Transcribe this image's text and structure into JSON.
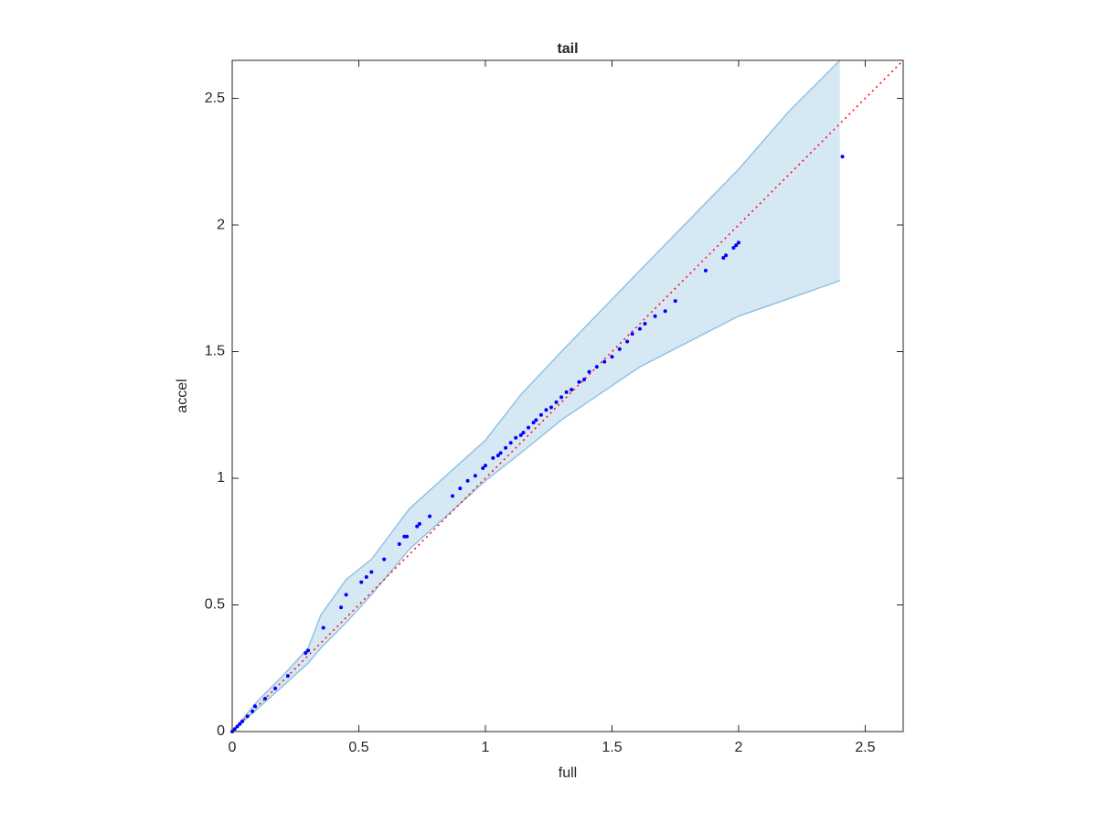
{
  "chart_data": {
    "type": "qq-band",
    "title": "tail",
    "x_label": "full",
    "y_label": "accel",
    "xlim": [
      0,
      2.65
    ],
    "ylim": [
      0,
      2.65
    ],
    "xticks": [
      0,
      0.5,
      1,
      1.5,
      2,
      2.5
    ],
    "yticks": [
      0,
      0.5,
      1,
      1.5,
      2,
      2.5
    ],
    "band": {
      "color": "#d7e8f5",
      "edge_color": "#8fc3e4",
      "x": [
        0,
        0.1,
        0.2,
        0.3,
        0.35,
        0.45,
        0.55,
        0.7,
        1.0,
        1.14,
        1.3,
        1.61,
        2.0,
        2.2,
        2.4
      ],
      "upper": [
        0,
        0.12,
        0.22,
        0.33,
        0.46,
        0.6,
        0.68,
        0.88,
        1.15,
        1.33,
        1.5,
        1.82,
        2.22,
        2.45,
        2.65
      ],
      "lower": [
        0,
        0.09,
        0.18,
        0.27,
        0.33,
        0.43,
        0.54,
        0.72,
        0.99,
        1.1,
        1.23,
        1.44,
        1.64,
        1.71,
        1.78
      ]
    },
    "reference": {
      "color": "#ff0000",
      "x": [
        0,
        2.65
      ],
      "values": [
        0,
        2.65
      ]
    },
    "points": {
      "color": "#0000ff",
      "x": [
        0,
        0.01,
        0.02,
        0.03,
        0.04,
        0.06,
        0.08,
        0.09,
        0.13,
        0.17,
        0.22,
        0.29,
        0.3,
        0.36,
        0.43,
        0.45,
        0.51,
        0.53,
        0.55,
        0.6,
        0.66,
        0.68,
        0.69,
        0.73,
        0.74,
        0.78,
        0.87,
        0.9,
        0.93,
        0.96,
        0.99,
        1.0,
        1.03,
        1.05,
        1.06,
        1.08,
        1.1,
        1.12,
        1.14,
        1.15,
        1.17,
        1.19,
        1.2,
        1.22,
        1.24,
        1.26,
        1.28,
        1.3,
        1.32,
        1.34,
        1.37,
        1.39,
        1.41,
        1.44,
        1.47,
        1.5,
        1.53,
        1.56,
        1.58,
        1.61,
        1.63,
        1.67,
        1.71,
        1.75,
        1.87,
        1.94,
        1.95,
        1.98,
        1.99,
        2.0,
        2.41
      ],
      "values": [
        0,
        0.01,
        0.02,
        0.03,
        0.04,
        0.06,
        0.08,
        0.1,
        0.13,
        0.17,
        0.22,
        0.31,
        0.32,
        0.41,
        0.49,
        0.54,
        0.59,
        0.61,
        0.63,
        0.68,
        0.74,
        0.77,
        0.77,
        0.81,
        0.82,
        0.85,
        0.93,
        0.96,
        0.99,
        1.01,
        1.04,
        1.05,
        1.08,
        1.09,
        1.1,
        1.12,
        1.14,
        1.16,
        1.17,
        1.18,
        1.2,
        1.22,
        1.23,
        1.25,
        1.27,
        1.28,
        1.3,
        1.32,
        1.34,
        1.35,
        1.38,
        1.39,
        1.42,
        1.44,
        1.46,
        1.48,
        1.51,
        1.54,
        1.57,
        1.59,
        1.61,
        1.64,
        1.66,
        1.7,
        1.82,
        1.87,
        1.88,
        1.91,
        1.92,
        1.93,
        2.27
      ]
    }
  }
}
